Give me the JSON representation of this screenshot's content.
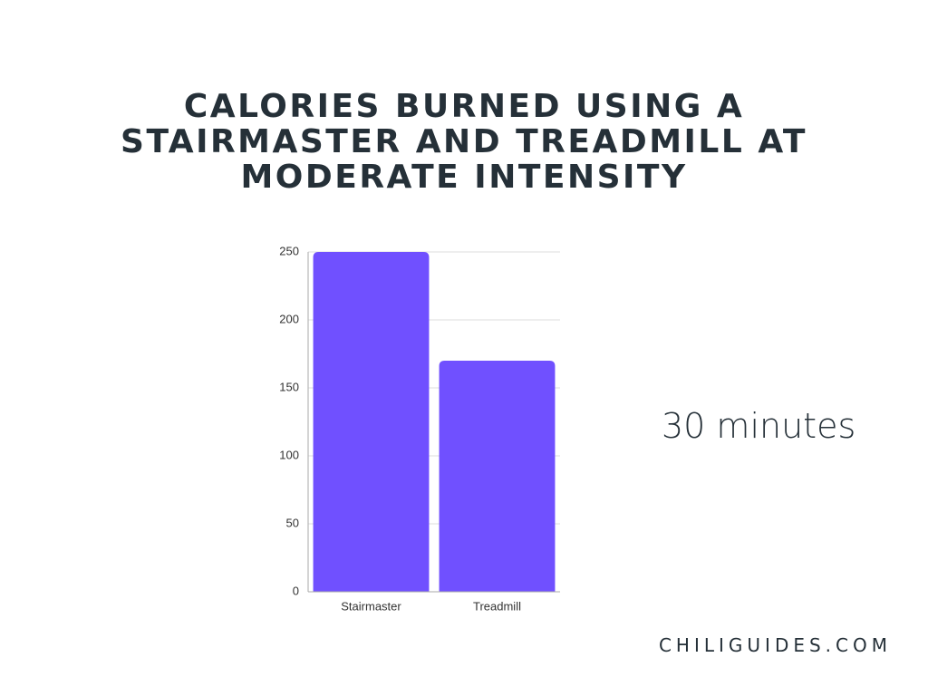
{
  "chart_data": {
    "type": "bar",
    "title": "CALORIES BURNED USING A STAIRMASTER AND TREADMILL AT MODERATE INTENSITY",
    "categories": [
      "Stairmaster",
      "Treadmill"
    ],
    "values": [
      250,
      170
    ],
    "color": "#7050ff",
    "ylim": [
      0,
      250
    ],
    "yticks": [
      0,
      50,
      100,
      150,
      200,
      250
    ],
    "grid": true,
    "annotation": "30 minutes",
    "footer": "CHILIGUIDES.COM"
  }
}
